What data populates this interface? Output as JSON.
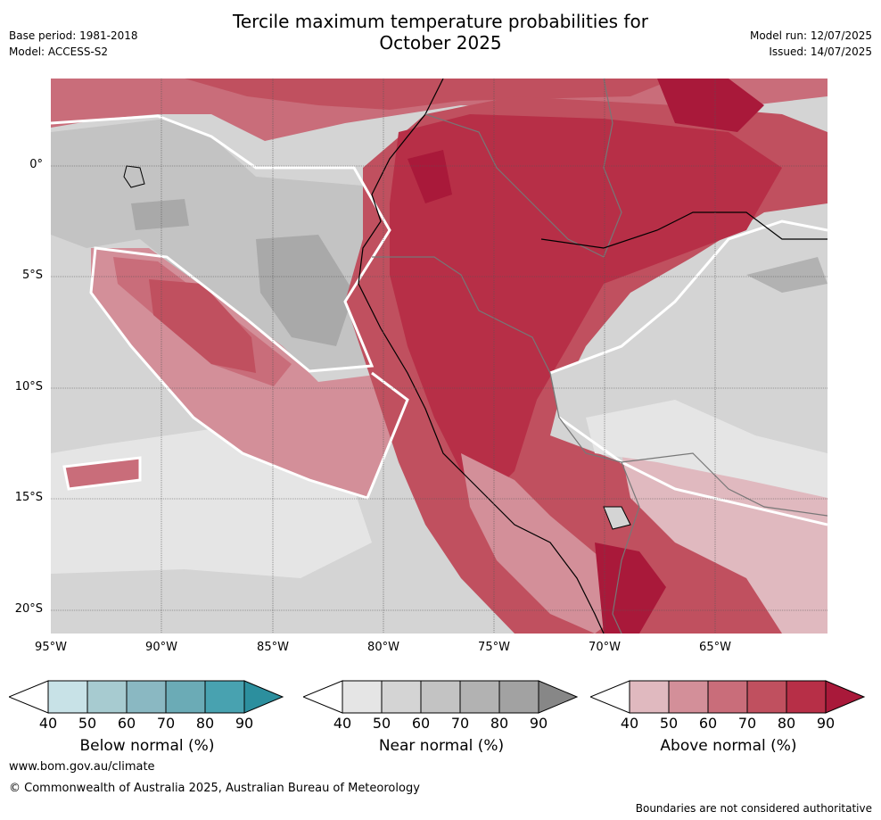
{
  "title_line1": "Tercile maximum temperature probabilities for",
  "title_line2": "October 2025",
  "base_period": "Base period: 1981-2018",
  "model": "Model: ACCESS-S2",
  "model_run": "Model run: 12/07/2025",
  "issued": "Issued: 14/07/2025",
  "map": {
    "lat_labels": [
      "0°",
      "5°S",
      "10°S",
      "15°S",
      "20°S"
    ],
    "lon_labels": [
      "95°W",
      "90°W",
      "85°W",
      "80°W",
      "75°W",
      "70°W",
      "65°W"
    ],
    "colors": {
      "ocean_base": "#d4d4d4",
      "above_40": "#e0b9bf",
      "above_50": "#d38f99",
      "above_60": "#c96d7a",
      "above_70": "#c0505f",
      "above_80": "#b72f47",
      "above_90": "#a9193a",
      "near_40": "#e5e5e5",
      "near_50": "#d4d4d4",
      "near_60": "#c3c3c3",
      "near_70": "#b2b2b2",
      "near_80": "#a2a2a2",
      "near_90": "#878787",
      "below_40": "#c8e2e7",
      "below_50": "#a7cbd0",
      "below_60": "#8ab8c2",
      "below_70": "#6babb6",
      "below_80": "#48a2b0",
      "below_90": "#2c8f9e"
    }
  },
  "colorbars": [
    {
      "label": "Below normal (%)",
      "ticks": [
        "40",
        "50",
        "60",
        "70",
        "80",
        "90"
      ]
    },
    {
      "label": "Near normal (%)",
      "ticks": [
        "40",
        "50",
        "60",
        "70",
        "80",
        "90"
      ]
    },
    {
      "label": "Above normal (%)",
      "ticks": [
        "40",
        "50",
        "60",
        "70",
        "80",
        "90"
      ]
    }
  ],
  "website": "www.bom.gov.au/climate",
  "copyright": "© Commonwealth of Australia 2025, Australian Bureau of Meteorology",
  "disclaimer": "Boundaries are not considered authoritative"
}
